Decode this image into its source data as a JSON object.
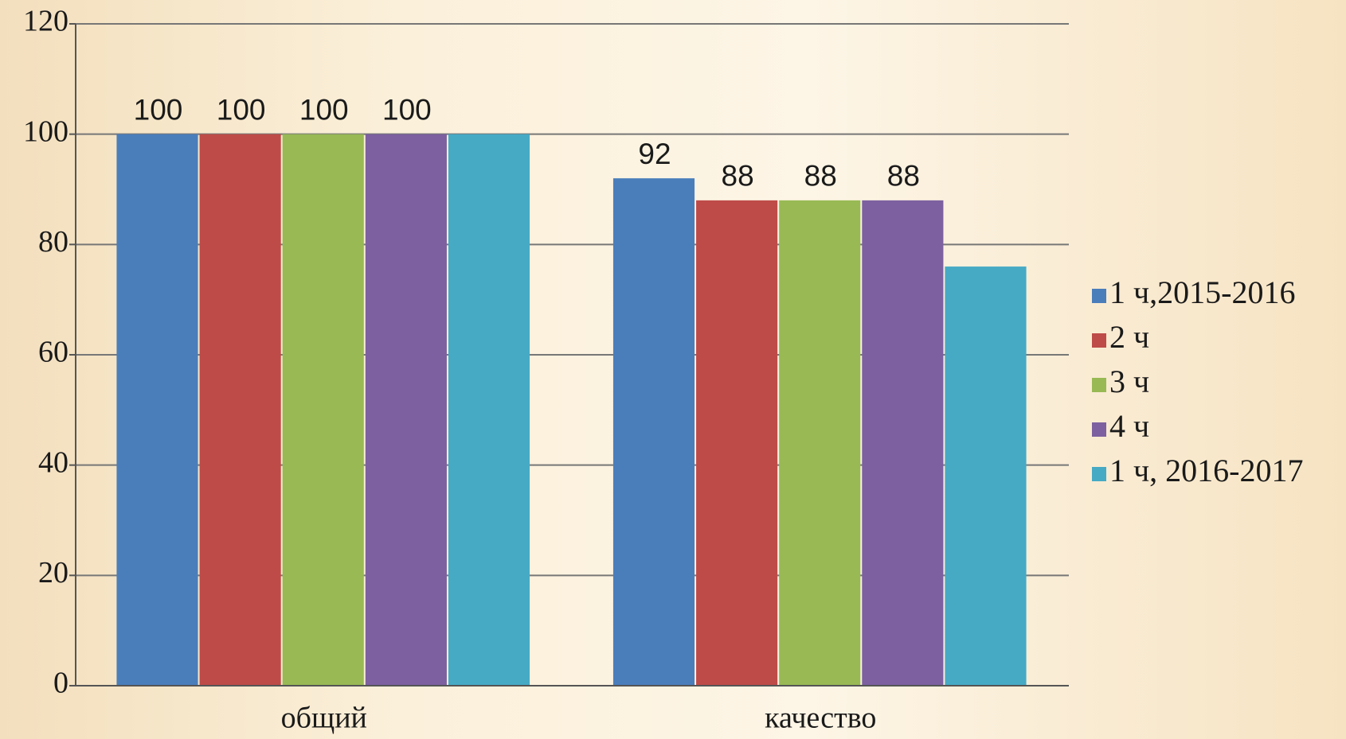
{
  "chart_data": {
    "type": "bar",
    "categories": [
      "общий",
      "качество"
    ],
    "series": [
      {
        "name": "1 ч,2015-2016",
        "color": "#4a7ebb",
        "values": [
          100,
          92
        ]
      },
      {
        "name": "2 ч",
        "color": "#be4b48",
        "values": [
          100,
          88
        ]
      },
      {
        "name": "3 ч",
        "color": "#98b954",
        "values": [
          100,
          88
        ]
      },
      {
        "name": "4 ч",
        "color": "#7d60a0",
        "values": [
          100,
          88
        ]
      },
      {
        "name": "1 ч, 2016-2017",
        "color": "#46aac5",
        "values": [
          100,
          76
        ],
        "data_labels": false
      }
    ],
    "ylim": [
      0,
      120
    ],
    "yticks": [
      0,
      20,
      40,
      60,
      80,
      100,
      120
    ],
    "grid": true,
    "legend": "right"
  }
}
